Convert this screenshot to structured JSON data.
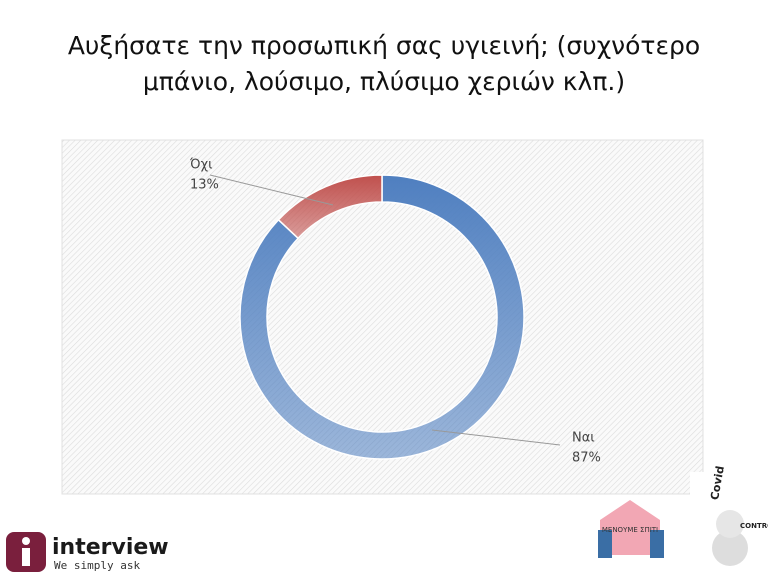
{
  "chart_data": {
    "type": "donut",
    "title": "Αυξήσατε την προσωπική σας υγιεινή; (συχνότερο μπάνιο, λούσιμο, πλύσιμο χεριών κλπ.)",
    "categories": [
      "Ναι",
      "Όχι"
    ],
    "values": [
      87,
      13
    ],
    "value_labels": [
      "87%",
      "13%"
    ],
    "colors": [
      "#4f7fc0",
      "#c0504d"
    ]
  },
  "logos": {
    "brand": "interview",
    "tagline": "We simply ask",
    "badge": "ΜΕΝΟΥΜΕ ΣΠΙΤΙ",
    "covid": "Covid",
    "control": "CONTROL"
  }
}
